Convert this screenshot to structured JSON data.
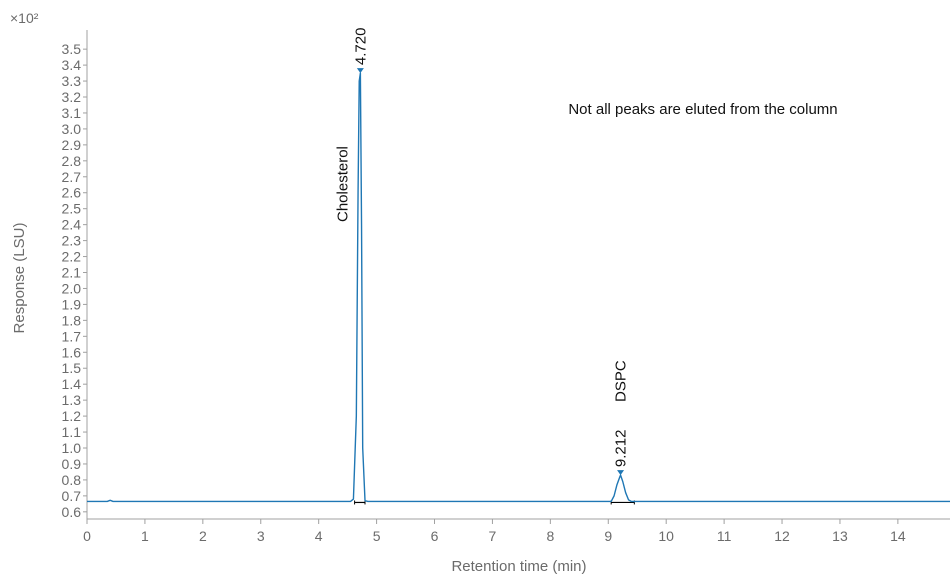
{
  "chart_data": {
    "type": "line",
    "title": "",
    "xlabel": "Retention time (min)",
    "ylabel": "Response (LSU)",
    "y_multiplier_label": "×10²",
    "xlim": [
      0,
      14.9
    ],
    "ylim": [
      0.555,
      3.62
    ],
    "x_ticks": [
      0,
      1,
      2,
      3,
      4,
      5,
      6,
      7,
      8,
      9,
      10,
      11,
      12,
      13,
      14
    ],
    "y_ticks": [
      0.6,
      0.7,
      0.8,
      0.9,
      1.0,
      1.1,
      1.2,
      1.3,
      1.4,
      1.5,
      1.6,
      1.7,
      1.8,
      1.9,
      2.0,
      2.1,
      2.2,
      2.3,
      2.4,
      2.5,
      2.6,
      2.7,
      2.8,
      2.9,
      3.0,
      3.1,
      3.2,
      3.3,
      3.4,
      3.5
    ],
    "baseline": 0.665,
    "note": "Not all peaks are eluted from the column",
    "series": [
      {
        "color": "#1f77b4",
        "x": [
          0,
          0.35,
          0.4,
          0.45,
          4.55,
          4.6,
          4.65,
          4.68,
          4.7,
          4.72,
          4.74,
          4.76,
          4.8,
          4.85,
          9.05,
          9.1,
          9.15,
          9.2,
          9.212,
          9.25,
          9.3,
          9.35,
          9.4,
          14.9
        ],
        "y": [
          0.665,
          0.665,
          0.672,
          0.665,
          0.665,
          0.68,
          1.2,
          2.6,
          3.3,
          3.35,
          2.4,
          1.0,
          0.67,
          0.665,
          0.665,
          0.7,
          0.77,
          0.82,
          0.83,
          0.79,
          0.72,
          0.675,
          0.665,
          0.665
        ]
      }
    ],
    "peaks": [
      {
        "time": 4.72,
        "label": "4.720",
        "compound": "Cholesterol",
        "height": 3.35
      },
      {
        "time": 9.212,
        "label": "9.212",
        "compound": "DSPC",
        "height": 0.83
      }
    ],
    "integration_baselines": [
      {
        "start": 4.62,
        "end": 4.8
      },
      {
        "start": 9.05,
        "end": 9.45
      }
    ],
    "grid": false
  }
}
